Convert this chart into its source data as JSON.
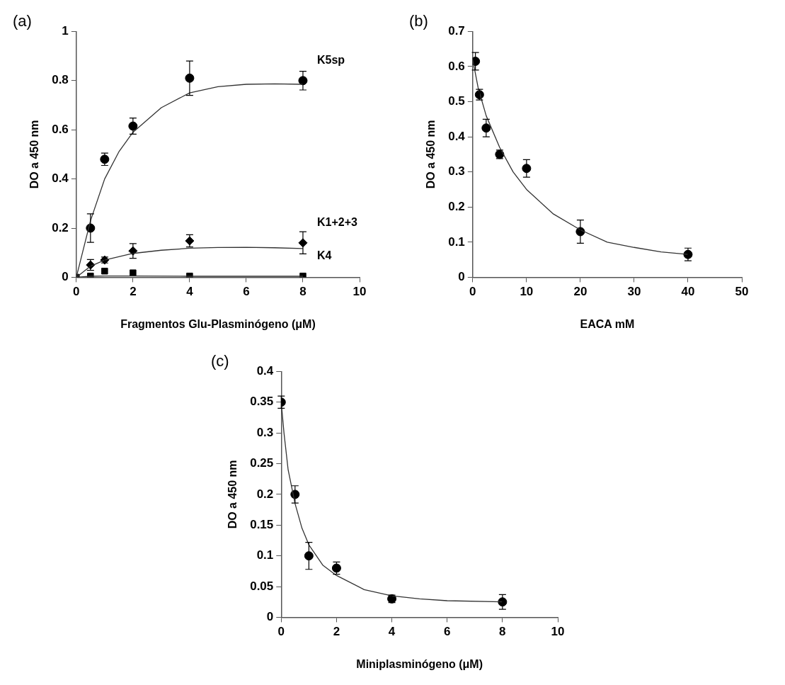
{
  "chart_data": [
    {
      "type": "scatter",
      "title": "(a)",
      "xlabel": "Fragmentos Glu-Plasminógeno (μM)",
      "ylabel": "DO a 450 nm",
      "xlim": [
        0,
        10
      ],
      "xticks": [
        0,
        2,
        4,
        6,
        8,
        10
      ],
      "ylim": [
        0,
        1
      ],
      "yticks": [
        0,
        0.2,
        0.4,
        0.6,
        0.8,
        1
      ],
      "grid": false,
      "legend": false,
      "series": [
        {
          "type": "line",
          "color": "#333333",
          "marker": "none",
          "x": [
            0,
            0.5,
            1,
            1.5,
            2,
            3,
            4,
            5,
            6,
            7,
            8
          ],
          "values": [
            0,
            0.23,
            0.4,
            0.51,
            0.59,
            0.69,
            0.75,
            0.775,
            0.785,
            0.787,
            0.785
          ]
        },
        {
          "type": "line",
          "color": "#333333",
          "marker": "none",
          "x": [
            0,
            0.5,
            1,
            2,
            3,
            4,
            5,
            6,
            7,
            8
          ],
          "values": [
            0,
            0.045,
            0.07,
            0.097,
            0.11,
            0.118,
            0.121,
            0.122,
            0.12,
            0.117
          ]
        },
        {
          "type": "line",
          "color": "#333333",
          "marker": "none",
          "x": [
            0,
            0.5,
            1,
            2,
            4,
            8
          ],
          "values": [
            0,
            0.004,
            0.005,
            0.005,
            0.004,
            0.004
          ]
        },
        {
          "name": "K5sp",
          "type": "scatter",
          "color": "#000000",
          "marker": "circle",
          "x": [
            0.5,
            1,
            2,
            4,
            8
          ],
          "values": [
            0.2,
            0.48,
            0.615,
            0.81,
            0.8
          ],
          "errors": [
            0.058,
            0.025,
            0.033,
            0.07,
            0.038
          ]
        },
        {
          "name": "K1+2+3",
          "type": "scatter",
          "color": "#000000",
          "marker": "diamond",
          "x": [
            0.5,
            1,
            2,
            4,
            8
          ],
          "values": [
            0.05,
            0.07,
            0.107,
            0.148,
            0.14
          ],
          "errors": [
            0.022,
            0.012,
            0.03,
            0.025,
            0.045
          ]
        },
        {
          "name": "K4",
          "type": "scatter",
          "color": "#000000",
          "marker": "square",
          "x": [
            0,
            0.5,
            1,
            2,
            4,
            8
          ],
          "values": [
            0,
            0.005,
            0.025,
            0.018,
            0.005,
            0.005
          ]
        }
      ]
    },
    {
      "type": "scatter",
      "title": "(b)",
      "xlabel": "EACA mM",
      "ylabel": "DO a 450 nm",
      "xlim": [
        0,
        50
      ],
      "xticks": [
        0,
        10,
        20,
        30,
        40,
        50
      ],
      "ylim": [
        0,
        0.7
      ],
      "yticks": [
        0,
        0.1,
        0.2,
        0.3,
        0.4,
        0.5,
        0.6,
        0.7
      ],
      "grid": false,
      "legend": false,
      "series": [
        {
          "type": "line",
          "color": "#333333",
          "marker": "none",
          "x": [
            0,
            1,
            2.5,
            5,
            7.5,
            10,
            15,
            20,
            25,
            30,
            35,
            40
          ],
          "values": [
            0.62,
            0.54,
            0.46,
            0.37,
            0.3,
            0.25,
            0.18,
            0.135,
            0.1,
            0.085,
            0.072,
            0.065
          ]
        },
        {
          "type": "scatter",
          "color": "#000000",
          "marker": "circle",
          "x": [
            0.5,
            1.25,
            2.5,
            5,
            10,
            20,
            40
          ],
          "values": [
            0.615,
            0.52,
            0.425,
            0.35,
            0.31,
            0.13,
            0.065
          ],
          "errors": [
            0.025,
            0.015,
            0.025,
            0.012,
            0.025,
            0.033,
            0.018
          ]
        }
      ]
    },
    {
      "type": "scatter",
      "title": "(c)",
      "xlabel": "Miniplasminógeno (μM)",
      "ylabel": "DO a 450 nm",
      "xlim": [
        0,
        10
      ],
      "xticks": [
        0,
        2,
        4,
        6,
        8,
        10
      ],
      "ylim": [
        0,
        0.4
      ],
      "yticks": [
        0,
        0.05,
        0.1,
        0.15,
        0.2,
        0.25,
        0.3,
        0.35,
        0.4
      ],
      "grid": false,
      "legend": false,
      "series": [
        {
          "type": "line",
          "color": "#333333",
          "marker": "none",
          "x": [
            0,
            0.1,
            0.25,
            0.5,
            0.75,
            1,
            1.5,
            2,
            3,
            4,
            5,
            6,
            8
          ],
          "values": [
            0.35,
            0.3,
            0.24,
            0.185,
            0.145,
            0.118,
            0.085,
            0.068,
            0.045,
            0.035,
            0.03,
            0.027,
            0.025
          ]
        },
        {
          "type": "scatter",
          "color": "#000000",
          "marker": "circle",
          "x": [
            0,
            0.5,
            1,
            2,
            4,
            8
          ],
          "values": [
            0.35,
            0.2,
            0.1,
            0.08,
            0.03,
            0.025
          ],
          "errors": [
            0.01,
            0.014,
            0.022,
            0.01,
            0.006,
            0.012
          ]
        }
      ]
    }
  ]
}
